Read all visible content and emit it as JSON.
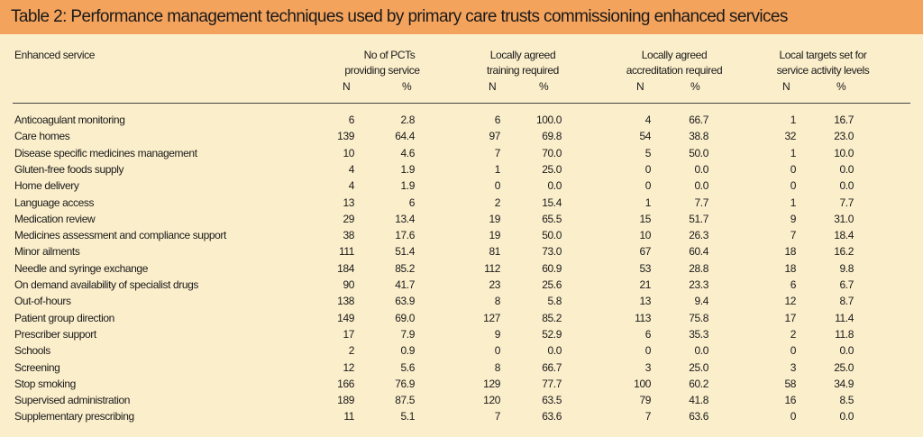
{
  "title": "Table 2: Performance management techniques used by primary care trusts commissioning enhanced services",
  "headers": {
    "service": "Enhanced service",
    "groups": [
      {
        "line1": "No of PCTs",
        "line2": "providing service"
      },
      {
        "line1": "Locally agreed",
        "line2": "training required"
      },
      {
        "line1": "Locally agreed",
        "line2": "accreditation required"
      },
      {
        "line1": "Local targets set for",
        "line2": "service activity levels"
      }
    ],
    "n_label": "N",
    "pct_label": "%"
  },
  "rows": [
    {
      "name": "Anticoagulant monitoring",
      "v": [
        "6",
        "2.8",
        "6",
        "100.0",
        "4",
        "66.7",
        "1",
        "16.7"
      ]
    },
    {
      "name": "Care homes",
      "v": [
        "139",
        "64.4",
        "97",
        "69.8",
        "54",
        "38.8",
        "32",
        "23.0"
      ]
    },
    {
      "name": "Disease specific medicines management",
      "v": [
        "10",
        "4.6",
        "7",
        "70.0",
        "5",
        "50.0",
        "1",
        "10.0"
      ]
    },
    {
      "name": "Gluten-free foods supply",
      "v": [
        "4",
        "1.9",
        "1",
        "25.0",
        "0",
        "0.0",
        "0",
        "0.0"
      ]
    },
    {
      "name": "Home delivery",
      "v": [
        "4",
        "1.9",
        "0",
        "0.0",
        "0",
        "0.0",
        "0",
        "0.0"
      ]
    },
    {
      "name": "Language access",
      "v": [
        "13",
        "6",
        "2",
        "15.4",
        "1",
        "7.7",
        "1",
        "7.7"
      ]
    },
    {
      "name": "Medication review",
      "v": [
        "29",
        "13.4",
        "19",
        "65.5",
        "15",
        "51.7",
        "9",
        "31.0"
      ]
    },
    {
      "name": "Medicines assessment and compliance support",
      "v": [
        "38",
        "17.6",
        "19",
        "50.0",
        "10",
        "26.3",
        "7",
        "18.4"
      ]
    },
    {
      "name": "Minor ailments",
      "v": [
        "111",
        "51.4",
        "81",
        "73.0",
        "67",
        "60.4",
        "18",
        "16.2"
      ]
    },
    {
      "name": "Needle and syringe exchange",
      "v": [
        "184",
        "85.2",
        "112",
        "60.9",
        "53",
        "28.8",
        "18",
        "9.8"
      ]
    },
    {
      "name": "On demand availability of specialist drugs",
      "v": [
        "90",
        "41.7",
        "23",
        "25.6",
        "21",
        "23.3",
        "6",
        "6.7"
      ]
    },
    {
      "name": "Out-of-hours",
      "v": [
        "138",
        "63.9",
        "8",
        "5.8",
        "13",
        "9.4",
        "12",
        "8.7"
      ]
    },
    {
      "name": "Patient group direction",
      "v": [
        "149",
        "69.0",
        "127",
        "85.2",
        "113",
        "75.8",
        "17",
        "11.4"
      ]
    },
    {
      "name": "Prescriber support",
      "v": [
        "17",
        "7.9",
        "9",
        "52.9",
        "6",
        "35.3",
        "2",
        "11.8"
      ]
    },
    {
      "name": "Schools",
      "v": [
        "2",
        "0.9",
        "0",
        "0.0",
        "0",
        "0.0",
        "0",
        "0.0"
      ]
    },
    {
      "name": "Screening",
      "v": [
        "12",
        "5.6",
        "8",
        "66.7",
        "3",
        "25.0",
        "3",
        "25.0"
      ]
    },
    {
      "name": "Stop smoking",
      "v": [
        "166",
        "76.9",
        "129",
        "77.7",
        "100",
        "60.2",
        "58",
        "34.9"
      ]
    },
    {
      "name": "Supervised administration",
      "v": [
        "189",
        "87.5",
        "120",
        "63.5",
        "79",
        "41.8",
        "16",
        "8.5"
      ]
    },
    {
      "name": "Supplementary prescribing",
      "v": [
        "11",
        "5.1",
        "7",
        "63.6",
        "7",
        "63.6",
        "0",
        "0.0"
      ]
    }
  ],
  "colors": {
    "title_bar": "#f4a35c",
    "background": "#fbeecb",
    "text": "#1a1a1a"
  }
}
